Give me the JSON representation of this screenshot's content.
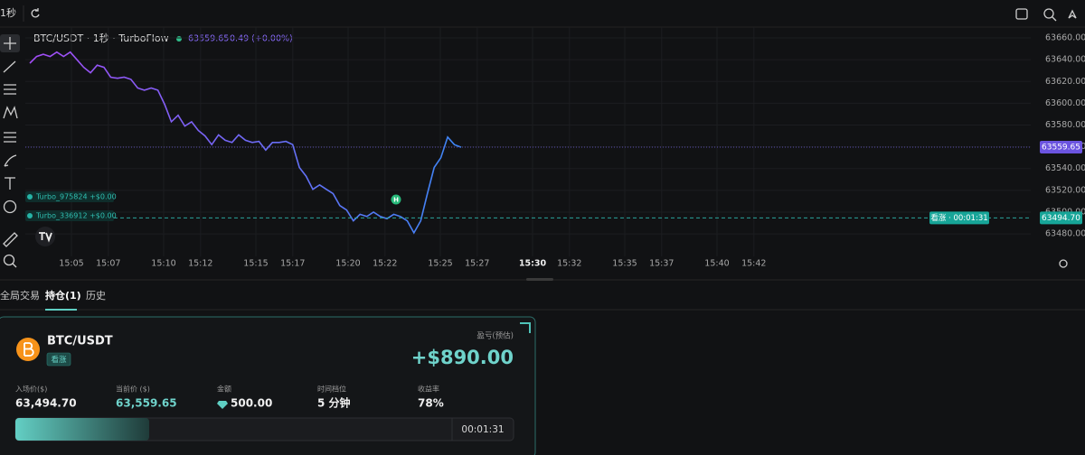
{
  "toolbar": {
    "interval": "1秒"
  },
  "chart_data": {
    "type": "line",
    "title": "BTC/USDT · 1秒 · TurboFlow",
    "last_price": 63559.65,
    "change": "0.49 (+0.00%)",
    "series": [
      {
        "gradient": [
          "#a34cf5",
          "#3d86f5"
        ],
        "values": [
          63636.8,
          63643,
          63645,
          63643,
          63647,
          63643,
          63647,
          63640,
          63633,
          63628,
          63635,
          63633,
          63624,
          63623,
          63624,
          63622,
          63614,
          63612,
          63614,
          63612,
          63599,
          63583,
          63589,
          63579,
          63583,
          63575,
          63570,
          63562,
          63571,
          63566,
          63564,
          63571,
          63566,
          63564,
          63565,
          63557,
          63564,
          63564,
          63565,
          63562,
          63541,
          63533,
          63521,
          63525,
          63521,
          63517,
          63506,
          63502,
          63492,
          63498,
          63496,
          63500,
          63496,
          63494,
          63498,
          63496,
          63492,
          63481,
          63492,
          63517,
          63541,
          63550,
          63569,
          63562,
          63559.65
        ]
      }
    ],
    "ylim": [
      63461,
      63670
    ],
    "yticks": [
      {
        "value": 63660,
        "label": "63660.00"
      },
      {
        "value": 63640,
        "label": "63640.00"
      },
      {
        "value": 63620,
        "label": "63620.00"
      },
      {
        "value": 63600,
        "label": "63600.00"
      },
      {
        "value": 63580,
        "label": "63580.00"
      },
      {
        "value": 63560,
        "label": "63560.00"
      },
      {
        "value": 63540,
        "label": "63540.00"
      },
      {
        "value": 63520,
        "label": "63520.00"
      },
      {
        "value": 63500,
        "label": "63500.00"
      },
      {
        "value": 63480,
        "label": "63480.00"
      }
    ],
    "x_labels": [
      "15:05",
      "15:07",
      "15:10",
      "15:12",
      "15:15",
      "15:17",
      "15:20",
      "15:22",
      "15:25",
      "15:27",
      "15:30",
      "15:32",
      "15:35",
      "15:37",
      "15:40",
      "15:42"
    ],
    "x_label_emphasis": 10,
    "entry_price": {
      "value": 63494.7,
      "label": "63494.70"
    },
    "timer_label": "看涨 · 00:01:31",
    "orders": [
      "Turbo_975824 +$0.00",
      "Turbo_336912 +$0.00"
    ],
    "marker_label": "H",
    "grid": true
  },
  "tabs": [
    "全局交易",
    "持仓(1)",
    "历史"
  ],
  "position": {
    "symbol": "BTC/USDT",
    "direction": "看涨",
    "pnl_label": "盈亏(预估)",
    "pnl": "+$890.00",
    "fields": [
      {
        "label": "入场价($)",
        "value": "63,494.70"
      },
      {
        "label": "当前价 ($)",
        "value": "63,559.65"
      },
      {
        "label": "金额",
        "value": "500.00"
      },
      {
        "label": "时间档位",
        "value": "5 分钟"
      },
      {
        "label": "收益率",
        "value": "78%"
      }
    ],
    "countdown": "00:01:31"
  }
}
